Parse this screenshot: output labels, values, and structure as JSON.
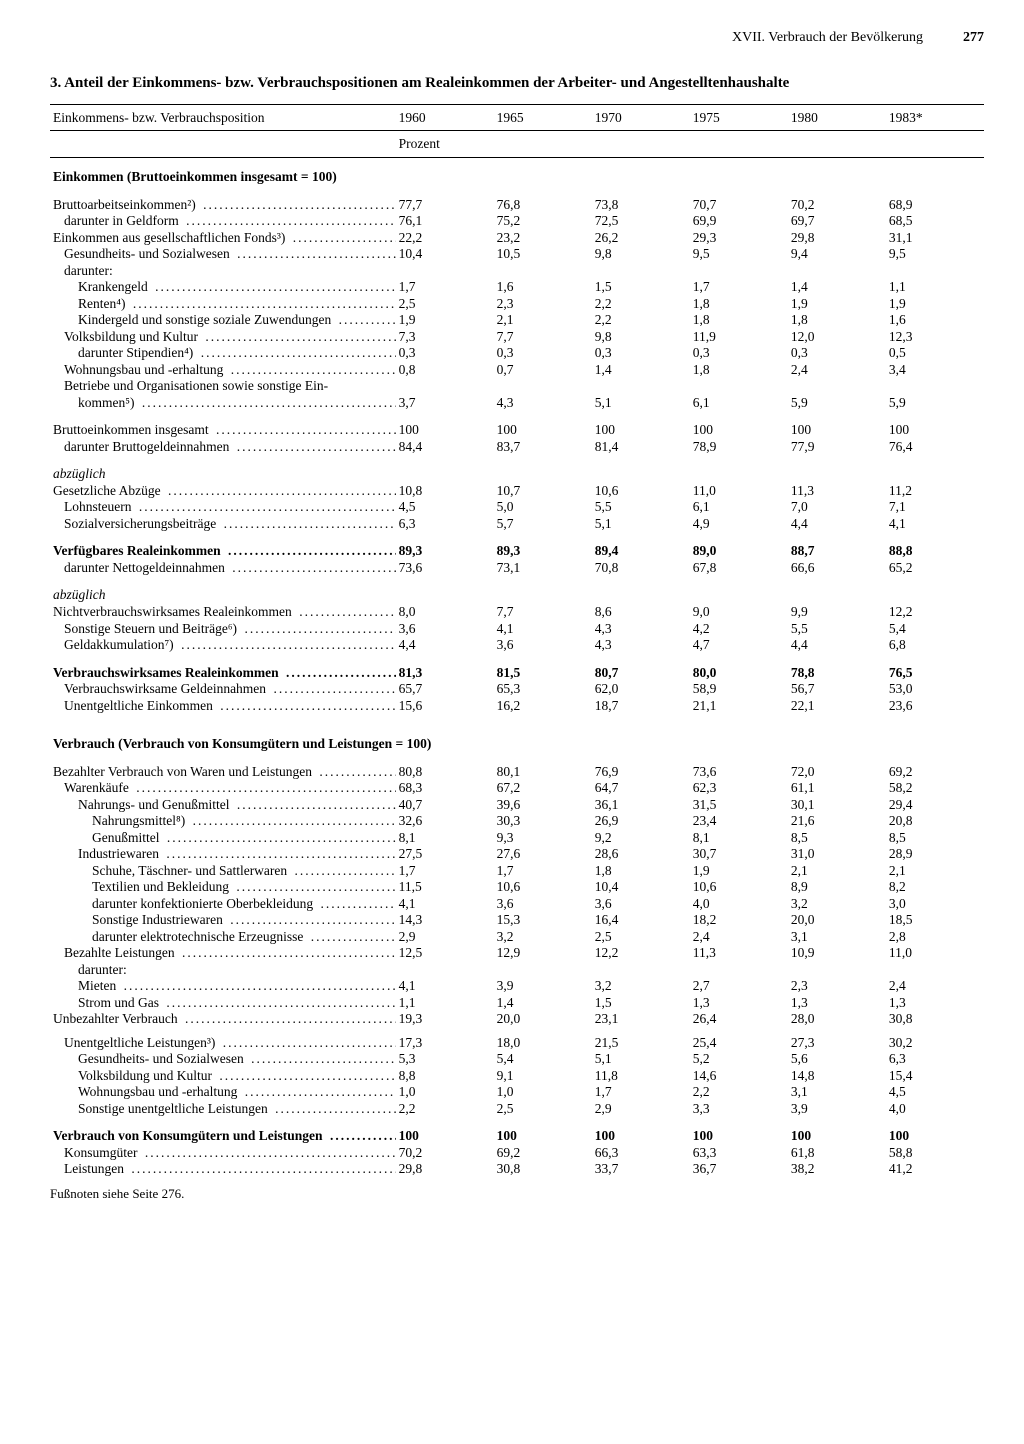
{
  "page": {
    "chapter": "XVII. Verbrauch der Bevölkerung",
    "number": "277",
    "title": "3. Anteil der Einkommens- bzw. Verbrauchspositionen am Realeinkommen der Arbeiter- und Angestelltenhaushalte",
    "footnote": "Fußnoten siehe Seite 276."
  },
  "columns": {
    "stub": "Einkommens- bzw. Verbrauchsposition",
    "years": [
      "1960",
      "1965",
      "1970",
      "1975",
      "1980",
      "1983*"
    ],
    "unit": "Prozent"
  },
  "sections": [
    {
      "heading": "Einkommen  (Bruttoeinkommen insgesamt = 100)",
      "rows": [
        {
          "l": "Bruttoarbeitseinkommen²)",
          "v": [
            "77,7",
            "76,8",
            "73,8",
            "70,7",
            "70,2",
            "68,9"
          ],
          "i": 0,
          "gapBefore": true
        },
        {
          "l": "darunter in Geldform",
          "v": [
            "76,1",
            "75,2",
            "72,5",
            "69,9",
            "69,7",
            "68,5"
          ],
          "i": 1
        },
        {
          "l": "Einkommen aus gesellschaftlichen Fonds³)",
          "v": [
            "22,2",
            "23,2",
            "26,2",
            "29,3",
            "29,8",
            "31,1"
          ],
          "i": 0
        },
        {
          "l": "Gesundheits- und Sozialwesen",
          "v": [
            "10,4",
            "10,5",
            "9,8",
            "9,5",
            "9,4",
            "9,5"
          ],
          "i": 1
        },
        {
          "l": "darunter:",
          "v": [
            "",
            "",
            "",
            "",
            "",
            ""
          ],
          "i": 1,
          "nodots": true
        },
        {
          "l": "Krankengeld",
          "v": [
            "1,7",
            "1,6",
            "1,5",
            "1,7",
            "1,4",
            "1,1"
          ],
          "i": 2
        },
        {
          "l": "Renten⁴)",
          "v": [
            "2,5",
            "2,3",
            "2,2",
            "1,8",
            "1,9",
            "1,9"
          ],
          "i": 2
        },
        {
          "l": "Kindergeld und sonstige soziale Zuwendungen",
          "v": [
            "1,9",
            "2,1",
            "2,2",
            "1,8",
            "1,8",
            "1,6"
          ],
          "i": 2
        },
        {
          "l": "Volksbildung und Kultur",
          "v": [
            "7,3",
            "7,7",
            "9,8",
            "11,9",
            "12,0",
            "12,3"
          ],
          "i": 1
        },
        {
          "l": "darunter Stipendien⁴)",
          "v": [
            "0,3",
            "0,3",
            "0,3",
            "0,3",
            "0,3",
            "0,5"
          ],
          "i": 2
        },
        {
          "l": "Wohnungsbau und -erhaltung",
          "v": [
            "0,8",
            "0,7",
            "1,4",
            "1,8",
            "2,4",
            "3,4"
          ],
          "i": 1
        },
        {
          "l": "Betriebe und Organisationen sowie sonstige Ein-",
          "v": [
            "",
            "",
            "",
            "",
            "",
            ""
          ],
          "i": 1,
          "nodots": true
        },
        {
          "l": "kommen⁵)",
          "v": [
            "3,7",
            "4,3",
            "5,1",
            "6,1",
            "5,9",
            "5,9"
          ],
          "i": 2
        },
        {
          "l": "Bruttoeinkommen insgesamt",
          "v": [
            "100",
            "100",
            "100",
            "100",
            "100",
            "100"
          ],
          "i": 0,
          "gapBefore": true
        },
        {
          "l": "darunter Bruttogeldeinnahmen",
          "v": [
            "84,4",
            "83,7",
            "81,4",
            "78,9",
            "77,9",
            "76,4"
          ],
          "i": 1
        },
        {
          "l": "abzüglich",
          "v": [
            "",
            "",
            "",
            "",
            "",
            ""
          ],
          "i": 0,
          "italic": true,
          "nodots": true,
          "gapBefore": true
        },
        {
          "l": "Gesetzliche Abzüge",
          "v": [
            "10,8",
            "10,7",
            "10,6",
            "11,0",
            "11,3",
            "11,2"
          ],
          "i": 0
        },
        {
          "l": "Lohnsteuern",
          "v": [
            "4,5",
            "5,0",
            "5,5",
            "6,1",
            "7,0",
            "7,1"
          ],
          "i": 1
        },
        {
          "l": "Sozialversicherungsbeiträge",
          "v": [
            "6,3",
            "5,7",
            "5,1",
            "4,9",
            "4,4",
            "4,1"
          ],
          "i": 1
        },
        {
          "l": "Verfügbares Realeinkommen",
          "v": [
            "89,3",
            "89,3",
            "89,4",
            "89,0",
            "88,7",
            "88,8"
          ],
          "i": 0,
          "bold": true,
          "gapBefore": true
        },
        {
          "l": "darunter Nettogeldeinnahmen",
          "v": [
            "73,6",
            "73,1",
            "70,8",
            "67,8",
            "66,6",
            "65,2"
          ],
          "i": 1
        },
        {
          "l": "abzüglich",
          "v": [
            "",
            "",
            "",
            "",
            "",
            ""
          ],
          "i": 0,
          "italic": true,
          "nodots": true,
          "gapBefore": true
        },
        {
          "l": "Nichtverbrauchswirksames Realeinkommen",
          "v": [
            "8,0",
            "7,7",
            "8,6",
            "9,0",
            "9,9",
            "12,2"
          ],
          "i": 0
        },
        {
          "l": "Sonstige Steuern und Beiträge⁶)",
          "v": [
            "3,6",
            "4,1",
            "4,3",
            "4,2",
            "5,5",
            "5,4"
          ],
          "i": 1
        },
        {
          "l": "Geldakkumulation⁷)",
          "v": [
            "4,4",
            "3,6",
            "4,3",
            "4,7",
            "4,4",
            "6,8"
          ],
          "i": 1
        },
        {
          "l": "Verbrauchswirksames Realeinkommen",
          "v": [
            "81,3",
            "81,5",
            "80,7",
            "80,0",
            "78,8",
            "76,5"
          ],
          "i": 0,
          "bold": true,
          "gapBefore": true
        },
        {
          "l": "Verbrauchswirksame Geldeinnahmen",
          "v": [
            "65,7",
            "65,3",
            "62,0",
            "58,9",
            "56,7",
            "53,0"
          ],
          "i": 1
        },
        {
          "l": "Unentgeltliche Einkommen",
          "v": [
            "15,6",
            "16,2",
            "18,7",
            "21,1",
            "22,1",
            "23,6"
          ],
          "i": 1
        }
      ]
    },
    {
      "heading": "Verbrauch (Verbrauch von Konsumgütern und Leistungen = 100)",
      "rows": [
        {
          "l": "Bezahlter Verbrauch von Waren und Leistungen",
          "v": [
            "80,8",
            "80,1",
            "76,9",
            "73,6",
            "72,0",
            "69,2"
          ],
          "i": 0,
          "gapBefore": true
        },
        {
          "l": "Warenkäufe",
          "v": [
            "68,3",
            "67,2",
            "64,7",
            "62,3",
            "61,1",
            "58,2"
          ],
          "i": 1
        },
        {
          "l": "Nahrungs- und Genußmittel",
          "v": [
            "40,7",
            "39,6",
            "36,1",
            "31,5",
            "30,1",
            "29,4"
          ],
          "i": 2
        },
        {
          "l": "Nahrungsmittel⁸)",
          "v": [
            "32,6",
            "30,3",
            "26,9",
            "23,4",
            "21,6",
            "20,8"
          ],
          "i": 3
        },
        {
          "l": "Genußmittel",
          "v": [
            "8,1",
            "9,3",
            "9,2",
            "8,1",
            "8,5",
            "8,5"
          ],
          "i": 3
        },
        {
          "l": "Industriewaren",
          "v": [
            "27,5",
            "27,6",
            "28,6",
            "30,7",
            "31,0",
            "28,9"
          ],
          "i": 2
        },
        {
          "l": "Schuhe, Täschner- und Sattlerwaren",
          "v": [
            "1,7",
            "1,7",
            "1,8",
            "1,9",
            "2,1",
            "2,1"
          ],
          "i": 3
        },
        {
          "l": "Textilien und Bekleidung",
          "v": [
            "11,5",
            "10,6",
            "10,4",
            "10,6",
            "8,9",
            "8,2"
          ],
          "i": 3
        },
        {
          "l": "darunter konfektionierte Oberbekleidung",
          "v": [
            "4,1",
            "3,6",
            "3,6",
            "4,0",
            "3,2",
            "3,0"
          ],
          "i": 3
        },
        {
          "l": "Sonstige Industriewaren",
          "v": [
            "14,3",
            "15,3",
            "16,4",
            "18,2",
            "20,0",
            "18,5"
          ],
          "i": 3
        },
        {
          "l": "darunter elektrotechnische Erzeugnisse",
          "v": [
            "2,9",
            "3,2",
            "2,5",
            "2,4",
            "3,1",
            "2,8"
          ],
          "i": 3
        },
        {
          "l": "Bezahlte Leistungen",
          "v": [
            "12,5",
            "12,9",
            "12,2",
            "11,3",
            "10,9",
            "11,0"
          ],
          "i": 1
        },
        {
          "l": "darunter:",
          "v": [
            "",
            "",
            "",
            "",
            "",
            ""
          ],
          "i": 2,
          "nodots": true
        },
        {
          "l": "Mieten",
          "v": [
            "4,1",
            "3,9",
            "3,2",
            "2,7",
            "2,3",
            "2,4"
          ],
          "i": 2
        },
        {
          "l": "Strom und Gas",
          "v": [
            "1,1",
            "1,4",
            "1,5",
            "1,3",
            "1,3",
            "1,3"
          ],
          "i": 2
        },
        {
          "l": "Unbezahlter Verbrauch",
          "v": [
            "19,3",
            "20,0",
            "23,1",
            "26,4",
            "28,0",
            "30,8"
          ],
          "i": 0
        },
        {
          "l": "Unentgeltliche Leistungen³)",
          "v": [
            "17,3",
            "18,0",
            "21,5",
            "25,4",
            "27,3",
            "30,2"
          ],
          "i": 1,
          "gapBefore": true,
          "gapSmall": true
        },
        {
          "l": "Gesundheits- und Sozialwesen",
          "v": [
            "5,3",
            "5,4",
            "5,1",
            "5,2",
            "5,6",
            "6,3"
          ],
          "i": 2
        },
        {
          "l": "Volksbildung und Kultur",
          "v": [
            "8,8",
            "9,1",
            "11,8",
            "14,6",
            "14,8",
            "15,4"
          ],
          "i": 2
        },
        {
          "l": "Wohnungsbau und -erhaltung",
          "v": [
            "1,0",
            "1,0",
            "1,7",
            "2,2",
            "3,1",
            "4,5"
          ],
          "i": 2
        },
        {
          "l": "Sonstige unentgeltliche Leistungen",
          "v": [
            "2,2",
            "2,5",
            "2,9",
            "3,3",
            "3,9",
            "4,0"
          ],
          "i": 2
        },
        {
          "l": "Verbrauch von Konsumgütern und Leistungen",
          "v": [
            "100",
            "100",
            "100",
            "100",
            "100",
            "100"
          ],
          "i": 0,
          "bold": true,
          "gapBefore": true
        },
        {
          "l": "Konsumgüter",
          "v": [
            "70,2",
            "69,2",
            "66,3",
            "63,3",
            "61,8",
            "58,8"
          ],
          "i": 1
        },
        {
          "l": "Leistungen",
          "v": [
            "29,8",
            "30,8",
            "33,7",
            "36,7",
            "38,2",
            "41,2"
          ],
          "i": 1
        }
      ]
    }
  ]
}
